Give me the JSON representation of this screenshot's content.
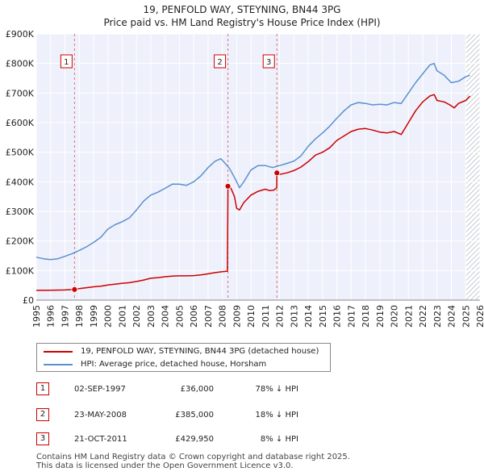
{
  "chart_data": {
    "type": "line",
    "title_line1": "19, PENFOLD WAY, STEYNING, BN44 3PG",
    "title_line2": "Price paid vs. HM Land Registry's House Price Index (HPI)",
    "xlim": [
      1995,
      2026
    ],
    "ylim": [
      0,
      900000
    ],
    "x_ticks": [
      1995,
      1996,
      1997,
      1998,
      1999,
      2000,
      2001,
      2002,
      2003,
      2004,
      2005,
      2006,
      2007,
      2008,
      2009,
      2010,
      2011,
      2012,
      2013,
      2014,
      2015,
      2016,
      2017,
      2018,
      2019,
      2020,
      2021,
      2022,
      2023,
      2024,
      2025,
      2026
    ],
    "y_ticks": [
      {
        "value": 0,
        "label": "£0"
      },
      {
        "value": 100000,
        "label": "£100K"
      },
      {
        "value": 200000,
        "label": "£200K"
      },
      {
        "value": 300000,
        "label": "£300K"
      },
      {
        "value": 400000,
        "label": "£400K"
      },
      {
        "value": 500000,
        "label": "£500K"
      },
      {
        "value": 600000,
        "label": "£600K"
      },
      {
        "value": 700000,
        "label": "£700K"
      },
      {
        "value": 800000,
        "label": "£800K"
      },
      {
        "value": 900000,
        "label": "£900K"
      }
    ],
    "series": [
      {
        "name": "19, PENFOLD WAY, STEYNING, BN44 3PG (detached house)",
        "color": "#cc0000",
        "points": [
          [
            1995.0,
            33000
          ],
          [
            1996.0,
            33500
          ],
          [
            1997.0,
            34500
          ],
          [
            1997.67,
            36000
          ],
          [
            1998.0,
            39000
          ],
          [
            1998.5,
            42000
          ],
          [
            1999.0,
            45000
          ],
          [
            1999.5,
            47000
          ],
          [
            2000.0,
            51000
          ],
          [
            2000.5,
            54000
          ],
          [
            2001.0,
            57000
          ],
          [
            2001.5,
            59000
          ],
          [
            2002.0,
            63000
          ],
          [
            2002.5,
            68000
          ],
          [
            2003.0,
            74000
          ],
          [
            2003.5,
            76000
          ],
          [
            2004.0,
            79000
          ],
          [
            2004.5,
            81000
          ],
          [
            2005.0,
            82000
          ],
          [
            2005.5,
            82000
          ],
          [
            2006.0,
            83000
          ],
          [
            2006.5,
            85000
          ],
          [
            2007.0,
            89000
          ],
          [
            2007.5,
            93000
          ],
          [
            2008.0,
            96000
          ],
          [
            2008.35,
            98000
          ],
          [
            2008.39,
            385000
          ],
          [
            2008.6,
            378000
          ],
          [
            2008.85,
            350000
          ],
          [
            2009.0,
            310000
          ],
          [
            2009.2,
            305000
          ],
          [
            2009.5,
            330000
          ],
          [
            2010.0,
            355000
          ],
          [
            2010.5,
            368000
          ],
          [
            2011.0,
            375000
          ],
          [
            2011.3,
            370000
          ],
          [
            2011.6,
            372000
          ],
          [
            2011.8,
            380000
          ],
          [
            2011.81,
            429950
          ],
          [
            2012.0,
            425000
          ],
          [
            2012.5,
            430000
          ],
          [
            2013.0,
            438000
          ],
          [
            2013.5,
            450000
          ],
          [
            2014.0,
            468000
          ],
          [
            2014.5,
            490000
          ],
          [
            2015.0,
            500000
          ],
          [
            2015.5,
            515000
          ],
          [
            2016.0,
            540000
          ],
          [
            2016.5,
            555000
          ],
          [
            2017.0,
            570000
          ],
          [
            2017.5,
            578000
          ],
          [
            2018.0,
            580000
          ],
          [
            2018.5,
            575000
          ],
          [
            2019.0,
            568000
          ],
          [
            2019.5,
            565000
          ],
          [
            2020.0,
            570000
          ],
          [
            2020.5,
            560000
          ],
          [
            2021.0,
            600000
          ],
          [
            2021.5,
            640000
          ],
          [
            2022.0,
            670000
          ],
          [
            2022.5,
            690000
          ],
          [
            2022.8,
            695000
          ],
          [
            2023.0,
            675000
          ],
          [
            2023.5,
            670000
          ],
          [
            2023.9,
            660000
          ],
          [
            2024.2,
            650000
          ],
          [
            2024.5,
            665000
          ],
          [
            2025.0,
            675000
          ],
          [
            2025.3,
            690000
          ]
        ]
      },
      {
        "name": "HPI: Average price, detached house, Horsham",
        "color": "#5b8fd0",
        "points": [
          [
            1995.0,
            145000
          ],
          [
            1995.5,
            140000
          ],
          [
            1996.0,
            137000
          ],
          [
            1996.5,
            140000
          ],
          [
            1997.0,
            148000
          ],
          [
            1997.5,
            157000
          ],
          [
            1998.0,
            168000
          ],
          [
            1998.5,
            180000
          ],
          [
            1999.0,
            195000
          ],
          [
            1999.5,
            212000
          ],
          [
            2000.0,
            240000
          ],
          [
            2000.5,
            255000
          ],
          [
            2001.0,
            265000
          ],
          [
            2001.5,
            278000
          ],
          [
            2002.0,
            305000
          ],
          [
            2002.5,
            335000
          ],
          [
            2003.0,
            355000
          ],
          [
            2003.5,
            365000
          ],
          [
            2004.0,
            378000
          ],
          [
            2004.5,
            392000
          ],
          [
            2005.0,
            392000
          ],
          [
            2005.5,
            388000
          ],
          [
            2006.0,
            400000
          ],
          [
            2006.5,
            420000
          ],
          [
            2007.0,
            448000
          ],
          [
            2007.5,
            470000
          ],
          [
            2007.9,
            478000
          ],
          [
            2008.2,
            462000
          ],
          [
            2008.5,
            445000
          ],
          [
            2008.9,
            410000
          ],
          [
            2009.2,
            380000
          ],
          [
            2009.5,
            400000
          ],
          [
            2010.0,
            440000
          ],
          [
            2010.5,
            455000
          ],
          [
            2011.0,
            455000
          ],
          [
            2011.5,
            448000
          ],
          [
            2012.0,
            455000
          ],
          [
            2012.5,
            462000
          ],
          [
            2013.0,
            470000
          ],
          [
            2013.5,
            488000
          ],
          [
            2014.0,
            520000
          ],
          [
            2014.5,
            545000
          ],
          [
            2015.0,
            565000
          ],
          [
            2015.5,
            588000
          ],
          [
            2016.0,
            615000
          ],
          [
            2016.5,
            640000
          ],
          [
            2017.0,
            660000
          ],
          [
            2017.5,
            668000
          ],
          [
            2018.0,
            665000
          ],
          [
            2018.5,
            660000
          ],
          [
            2019.0,
            662000
          ],
          [
            2019.5,
            660000
          ],
          [
            2020.0,
            668000
          ],
          [
            2020.5,
            665000
          ],
          [
            2021.0,
            700000
          ],
          [
            2021.5,
            735000
          ],
          [
            2022.0,
            765000
          ],
          [
            2022.5,
            795000
          ],
          [
            2022.8,
            800000
          ],
          [
            2023.0,
            775000
          ],
          [
            2023.5,
            760000
          ],
          [
            2024.0,
            735000
          ],
          [
            2024.5,
            740000
          ],
          [
            2025.0,
            755000
          ],
          [
            2025.3,
            760000
          ]
        ]
      }
    ],
    "sale_markers": [
      {
        "label": "1",
        "x": 1997.67,
        "price": 36000
      },
      {
        "label": "2",
        "x": 2008.39,
        "price": 385000
      },
      {
        "label": "3",
        "x": 2011.81,
        "price": 429950
      }
    ],
    "future_shade_start": 2025.0
  },
  "legend": {
    "items": [
      {
        "label": "19, PENFOLD WAY, STEYNING, BN44 3PG (detached house)",
        "color": "#cc0000"
      },
      {
        "label": "HPI: Average price, detached house, Horsham",
        "color": "#5b8fd0"
      }
    ]
  },
  "sales": [
    {
      "num": "1",
      "date": "02-SEP-1997",
      "price": "£36,000",
      "hpi": "78% ↓ HPI"
    },
    {
      "num": "2",
      "date": "23-MAY-2008",
      "price": "£385,000",
      "hpi": "18% ↓ HPI"
    },
    {
      "num": "3",
      "date": "21-OCT-2011",
      "price": "£429,950",
      "hpi": "8% ↓ HPI"
    }
  ],
  "footer": {
    "line1": "Contains HM Land Registry data © Crown copyright and database right 2025.",
    "line2": "This data is licensed under the Open Government Licence v3.0."
  }
}
